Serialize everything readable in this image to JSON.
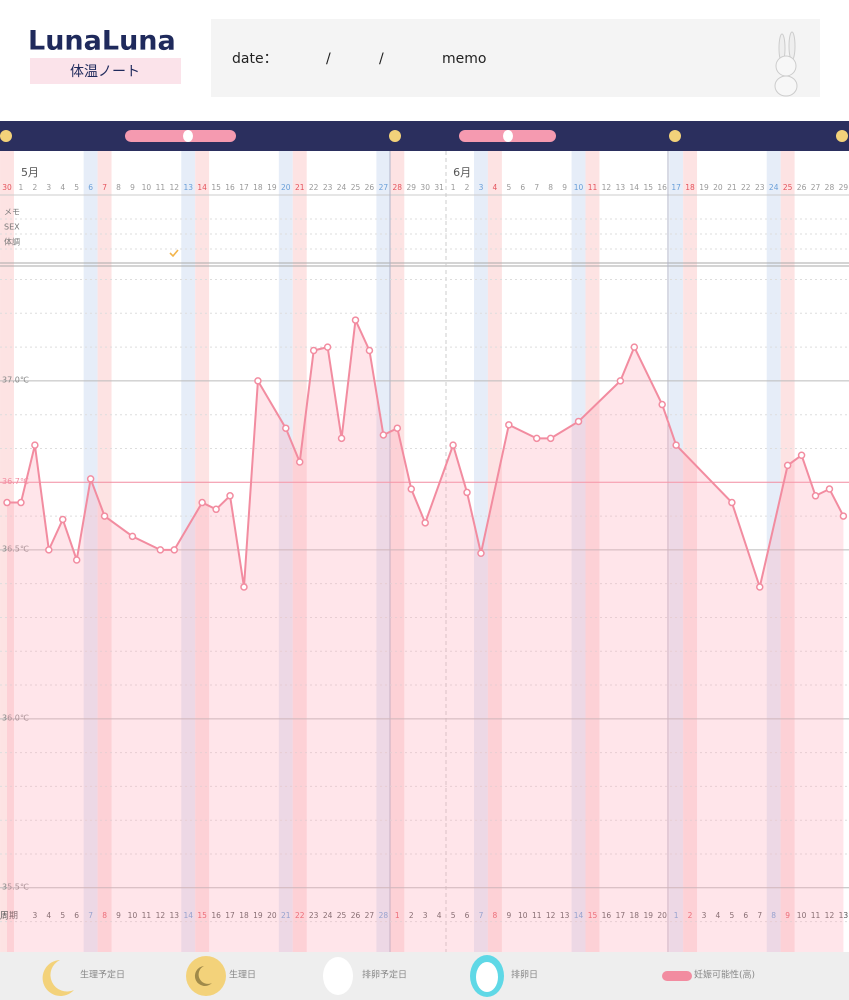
{
  "header": {
    "logo": "LunaLuna",
    "subtitle": "体温ノート",
    "date_label": "date：",
    "slash": "/",
    "memo_label": "memo"
  },
  "chart_data": {
    "type": "line",
    "months": [
      {
        "label": "5月",
        "index": 1
      },
      {
        "label": "6月",
        "index": 32
      }
    ],
    "rows": [
      "メモ",
      "SEX",
      "体調"
    ],
    "categories": [
      "30",
      "1",
      "2",
      "3",
      "4",
      "5",
      "6",
      "7",
      "8",
      "9",
      "10",
      "11",
      "12",
      "13",
      "14",
      "15",
      "16",
      "17",
      "18",
      "19",
      "20",
      "21",
      "22",
      "23",
      "24",
      "25",
      "26",
      "27",
      "28",
      "29",
      "30",
      "31",
      "1",
      "2",
      "3",
      "4",
      "5",
      "6",
      "7",
      "8",
      "9",
      "10",
      "11",
      "12",
      "13",
      "14",
      "15",
      "16",
      "17",
      "18",
      "19",
      "20",
      "21",
      "22",
      "23",
      "24",
      "25",
      "26",
      "27",
      "28",
      "29"
    ],
    "category_colors": [
      "#e5545d",
      "#999999",
      "#999999",
      "#999999",
      "#999999",
      "#999999",
      "#6a9fd8",
      "#e5545d",
      "#999999",
      "#999999",
      "#999999",
      "#999999",
      "#999999",
      "#6a9fd8",
      "#e5545d",
      "#999999",
      "#999999",
      "#999999",
      "#999999",
      "#999999",
      "#6a9fd8",
      "#e5545d",
      "#999999",
      "#999999",
      "#999999",
      "#999999",
      "#999999",
      "#6a9fd8",
      "#e5545d",
      "#999999",
      "#999999",
      "#999999",
      "#999999",
      "#999999",
      "#6a9fd8",
      "#e5545d",
      "#999999",
      "#999999",
      "#999999",
      "#999999",
      "#999999",
      "#6a9fd8",
      "#e5545d",
      "#999999",
      "#999999",
      "#999999",
      "#999999",
      "#999999",
      "#6a9fd8",
      "#e5545d",
      "#999999",
      "#999999",
      "#999999",
      "#999999",
      "#999999",
      "#6a9fd8",
      "#e5545d",
      "#999999",
      "#999999",
      "#999999",
      "#999999"
    ],
    "cycle_label": "周期",
    "cycle_days": [
      null,
      null,
      3,
      4,
      5,
      6,
      7,
      8,
      9,
      10,
      11,
      12,
      13,
      14,
      15,
      16,
      17,
      18,
      19,
      20,
      21,
      22,
      23,
      24,
      25,
      26,
      27,
      28,
      1,
      2,
      3,
      4,
      5,
      6,
      7,
      8,
      9,
      10,
      11,
      12,
      13,
      14,
      15,
      16,
      17,
      18,
      19,
      20,
      1,
      2,
      3,
      4,
      5,
      6,
      7,
      8,
      9,
      10,
      11,
      12,
      13
    ],
    "series": [
      {
        "color": "#f28ca0",
        "values": [
          36.64,
          36.64,
          36.81,
          36.5,
          36.59,
          36.47,
          36.71,
          36.6,
          null,
          36.54,
          null,
          36.5,
          36.5,
          null,
          36.64,
          36.62,
          36.66,
          36.39,
          37.0,
          null,
          36.86,
          36.76,
          37.09,
          37.1,
          36.83,
          37.18,
          37.09,
          36.84,
          36.86,
          36.68,
          36.58,
          null,
          36.81,
          36.67,
          36.49,
          null,
          36.87,
          null,
          36.83,
          36.83,
          null,
          36.88,
          null,
          null,
          37.0,
          37.1,
          null,
          36.93,
          36.81,
          null,
          null,
          null,
          36.64,
          null,
          36.39,
          null,
          36.75,
          36.78,
          36.66,
          36.68,
          36.6
        ]
      }
    ],
    "ylim": [
      35.31,
      37.34
    ],
    "yticks": [
      {
        "value": 35.5,
        "label": "35.5℃"
      },
      {
        "value": 36.0,
        "label": "36.0℃"
      },
      {
        "value": 36.5,
        "label": "36.5℃"
      },
      {
        "value": 37.0,
        "label": "37.0℃"
      }
    ],
    "minor_yticks": [
      35.4,
      35.6,
      35.7,
      35.8,
      35.9,
      36.1,
      36.2,
      36.3,
      36.4,
      36.6,
      36.8,
      36.9,
      37.1,
      37.2,
      37.3
    ],
    "reference_line": {
      "value": 36.7,
      "label": "36.7℃",
      "color": "#f28ca0"
    },
    "legend": [
      "生理予定日",
      "生理日",
      "排卵予定日",
      "排卵日",
      "妊娠可能性(高)"
    ]
  }
}
